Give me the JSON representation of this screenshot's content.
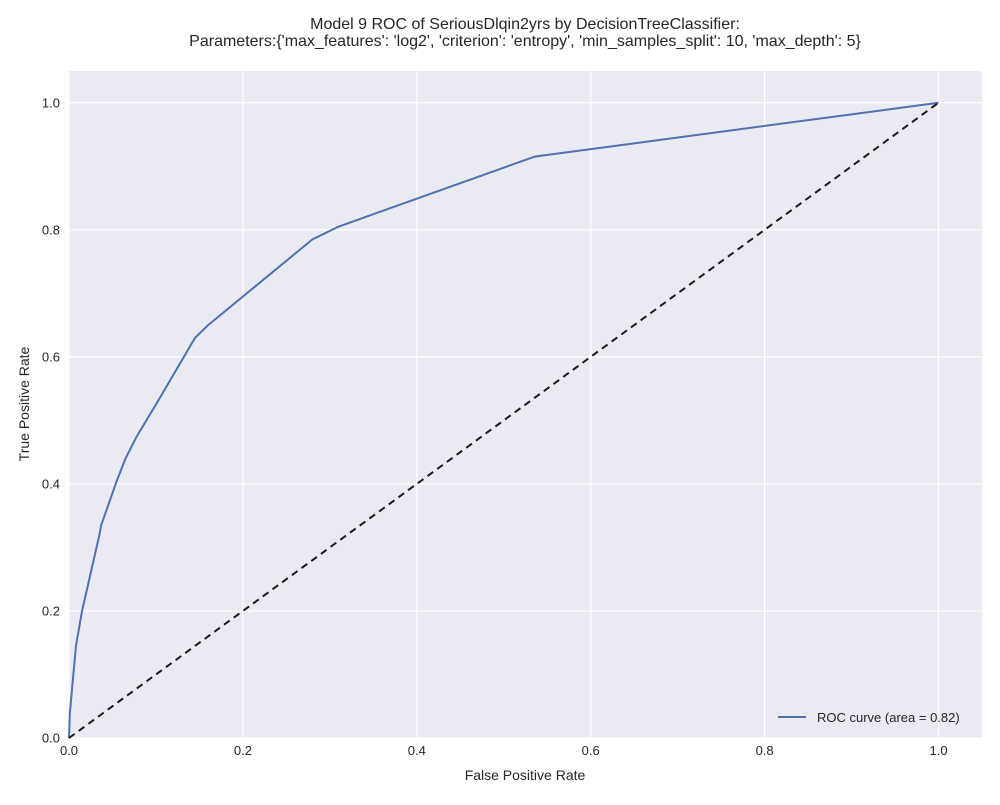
{
  "chart_data": {
    "type": "line",
    "title": "Model 9 ROC of SeriousDlqin2yrs by DecisionTreeClassifier:",
    "subtitle": "Parameters:{'max_features': 'log2', 'criterion': 'entropy', 'min_samples_split': 10, 'max_depth': 5}",
    "xlabel": "False Positive Rate",
    "ylabel": "True Positive Rate",
    "xlim": [
      0.0,
      1.05
    ],
    "ylim": [
      0.0,
      1.05
    ],
    "xticks": [
      "0.0",
      "0.2",
      "0.4",
      "0.6",
      "0.8",
      "1.0"
    ],
    "yticks": [
      "0.0",
      "0.2",
      "0.4",
      "0.6",
      "0.8",
      "1.0"
    ],
    "grid": true,
    "legend_position": "lower-right",
    "series": [
      {
        "name": "ROC curve (area = 0.82)",
        "color": "#4c72b0",
        "x": [
          0.0,
          0.001,
          0.003,
          0.005,
          0.008,
          0.015,
          0.025,
          0.035,
          0.037,
          0.046,
          0.055,
          0.065,
          0.078,
          0.1,
          0.145,
          0.16,
          0.28,
          0.31,
          0.535,
          0.545,
          1.0
        ],
        "y": [
          0.0,
          0.04,
          0.07,
          0.1,
          0.145,
          0.2,
          0.26,
          0.32,
          0.335,
          0.37,
          0.405,
          0.44,
          0.475,
          0.525,
          0.63,
          0.65,
          0.785,
          0.805,
          0.915,
          0.917,
          1.0
        ]
      },
      {
        "name": "",
        "color": "#1a1a1a",
        "style": "dashed",
        "x": [
          0.0,
          1.0
        ],
        "y": [
          0.0,
          1.0
        ]
      }
    ]
  }
}
